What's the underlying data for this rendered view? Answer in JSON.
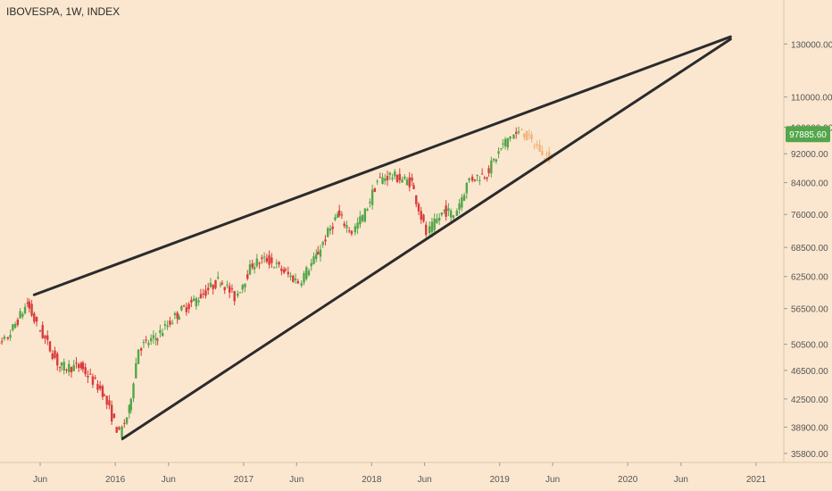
{
  "header": {
    "symbol": "IBOVESPA",
    "interval": "1W",
    "exchange": "INDEX"
  },
  "colors": {
    "background": "#fbe7cf",
    "up": "#53a64a",
    "down": "#d93a3a",
    "projection": "#f0b27a",
    "trendline": "#2b2b2b",
    "price_tag": "#53a64a",
    "axis_text": "#555555"
  },
  "chart_data": {
    "type": "candlestick",
    "scale": "log",
    "x_ticks": [
      "Jun",
      "2016",
      "Jun",
      "2017",
      "Jun",
      "2018",
      "Jun",
      "2019",
      "Jun",
      "2020",
      "Jun",
      "2021"
    ],
    "x_tick_dates": [
      "2015-06",
      "2016-01",
      "2016-06",
      "2017-01",
      "2017-06",
      "2018-01",
      "2018-06",
      "2019-01",
      "2019-06",
      "2020-01",
      "2020-06",
      "2021-01"
    ],
    "y_ticks": [
      "35800.00",
      "38900.00",
      "42500.00",
      "46500.00",
      "50500.00",
      "56500.00",
      "62500.00",
      "68500.00",
      "76000.00",
      "84000.00",
      "92000.00",
      "100000.00",
      "110000.00",
      "130000.00"
    ],
    "y_tick_values": [
      35800,
      38900,
      42500,
      46500,
      50500,
      56500,
      62500,
      68500,
      76000,
      84000,
      92000,
      100000,
      110000,
      130000
    ],
    "y_range": [
      34800,
      146000
    ],
    "last_price": "97885.60",
    "last_price_value": 97885.6,
    "series": [
      {
        "name": "price",
        "values": [
          {
            "date": "2015-01-01",
            "close": 48000
          },
          {
            "date": "2015-03-01",
            "close": 51000
          },
          {
            "date": "2015-05-01",
            "close": 57500
          },
          {
            "date": "2015-06-01",
            "close": 53500
          },
          {
            "date": "2015-08-01",
            "close": 47000
          },
          {
            "date": "2015-10-01",
            "close": 47000
          },
          {
            "date": "2015-12-01",
            "close": 43500
          },
          {
            "date": "2016-01-20",
            "close": 38000
          },
          {
            "date": "2016-02-15",
            "close": 41000
          },
          {
            "date": "2016-03-15",
            "close": 50000
          },
          {
            "date": "2016-05-01",
            "close": 51500
          },
          {
            "date": "2016-07-01",
            "close": 55500
          },
          {
            "date": "2016-09-01",
            "close": 58500
          },
          {
            "date": "2016-11-01",
            "close": 62000
          },
          {
            "date": "2016-12-15",
            "close": 58500
          },
          {
            "date": "2017-02-01",
            "close": 65000
          },
          {
            "date": "2017-03-15",
            "close": 66000
          },
          {
            "date": "2017-05-01",
            "close": 63500
          },
          {
            "date": "2017-06-15",
            "close": 61500
          },
          {
            "date": "2017-08-01",
            "close": 66500
          },
          {
            "date": "2017-10-01",
            "close": 76000
          },
          {
            "date": "2017-11-15",
            "close": 72000
          },
          {
            "date": "2017-12-20",
            "close": 76500
          },
          {
            "date": "2018-01-25",
            "close": 84500
          },
          {
            "date": "2018-03-01",
            "close": 86000
          },
          {
            "date": "2018-05-01",
            "close": 84000
          },
          {
            "date": "2018-06-15",
            "close": 71500
          },
          {
            "date": "2018-08-01",
            "close": 77000
          },
          {
            "date": "2018-09-01",
            "close": 76000
          },
          {
            "date": "2018-10-15",
            "close": 85000
          },
          {
            "date": "2018-12-01",
            "close": 86500
          },
          {
            "date": "2019-01-10",
            "close": 93500
          },
          {
            "date": "2019-02-10",
            "close": 97500
          },
          {
            "date": "2019-03-05",
            "close": 97885.6
          }
        ]
      },
      {
        "name": "projection",
        "values": [
          {
            "date": "2019-03-12",
            "close": 99500
          },
          {
            "date": "2019-03-26",
            "close": 97000
          },
          {
            "date": "2019-04-10",
            "close": 95500
          },
          {
            "date": "2019-04-25",
            "close": 94000
          },
          {
            "date": "2019-05-15",
            "close": 91500
          },
          {
            "date": "2019-06-05",
            "close": 91500
          }
        ]
      }
    ],
    "trendlines": [
      {
        "name": "upper",
        "start": {
          "date": "2015-05-15",
          "value": 59000
        },
        "end": {
          "date": "2020-10-20",
          "value": 133000
        }
      },
      {
        "name": "lower",
        "start": {
          "date": "2016-01-22",
          "value": 37500
        },
        "end": {
          "date": "2020-10-20",
          "value": 132000
        }
      }
    ]
  }
}
